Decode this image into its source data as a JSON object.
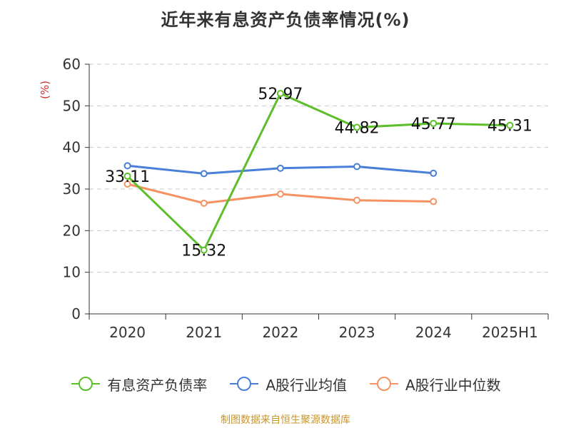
{
  "chart_data": {
    "type": "line",
    "title": "近年来有息资产负债率情况(%)",
    "ylabel": "(%)",
    "xlabel": "",
    "categories": [
      "2020",
      "2021",
      "2022",
      "2023",
      "2024",
      "2025H1"
    ],
    "ylim": [
      0,
      60
    ],
    "yticks": [
      0,
      10,
      20,
      30,
      40,
      50,
      60
    ],
    "grid": true,
    "legend_position": "bottom",
    "series": [
      {
        "name": "有息资产负债率",
        "color": "#5cbf2a",
        "values": [
          33.11,
          15.32,
          52.97,
          44.82,
          45.77,
          45.31
        ],
        "labels": [
          "33.11",
          "15.32",
          "52.97",
          "44.82",
          "45.77",
          "45.31"
        ]
      },
      {
        "name": "A股行业均值",
        "color": "#4a7fd8",
        "values": [
          35.6,
          33.7,
          35.0,
          35.4,
          33.8,
          null
        ]
      },
      {
        "name": "A股行业中位数",
        "color": "#f59262",
        "values": [
          31.2,
          26.6,
          28.8,
          27.3,
          27.0,
          null
        ]
      }
    ]
  },
  "footer": {
    "source": "制图数据来自恒生聚源数据库"
  }
}
